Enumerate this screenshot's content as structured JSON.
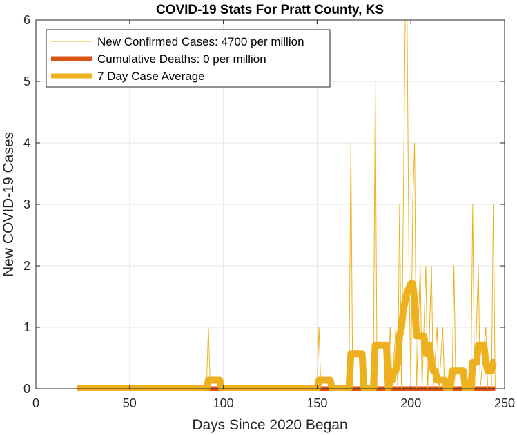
{
  "chart_data": {
    "type": "line",
    "title": "COVID-19 Stats For Pratt County, KS",
    "xlabel": "Days Since 2020 Began",
    "ylabel": "New COVID-19 Cases",
    "xlim": [
      0,
      250
    ],
    "ylim": [
      0,
      6
    ],
    "xticks": [
      0,
      50,
      100,
      150,
      200,
      250
    ],
    "yticks": [
      0,
      1,
      2,
      3,
      4,
      5,
      6
    ],
    "grid": true,
    "legend_position": "top-left",
    "colors": {
      "cases": "#EDB120",
      "deaths": "#D95319",
      "average": "#EDB120",
      "grid": "#e6e6e6",
      "axis": "#262626"
    },
    "series": [
      {
        "name": "New Confirmed Cases: 4700 per million",
        "style": "thin",
        "points": [
          [
            22,
            0
          ],
          [
            90,
            0
          ],
          [
            91,
            0
          ],
          [
            92,
            1
          ],
          [
            93,
            0
          ],
          [
            150,
            0
          ],
          [
            151,
            1
          ],
          [
            152,
            0
          ],
          [
            167,
            0
          ],
          [
            168,
            4
          ],
          [
            169,
            0
          ],
          [
            180,
            0
          ],
          [
            181,
            5
          ],
          [
            182,
            0
          ],
          [
            188,
            0
          ],
          [
            189,
            1
          ],
          [
            190,
            0
          ],
          [
            192,
            1
          ],
          [
            193,
            0
          ],
          [
            194,
            3
          ],
          [
            195,
            0
          ],
          [
            196,
            3
          ],
          [
            197,
            6
          ],
          [
            198,
            6
          ],
          [
            199,
            2
          ],
          [
            200,
            0
          ],
          [
            201,
            3
          ],
          [
            202,
            4
          ],
          [
            203,
            0
          ],
          [
            205,
            2
          ],
          [
            206,
            0
          ],
          [
            208,
            2
          ],
          [
            209,
            0
          ],
          [
            211,
            2
          ],
          [
            212,
            0
          ],
          [
            214,
            1
          ],
          [
            215,
            0
          ],
          [
            217,
            1
          ],
          [
            218,
            0
          ],
          [
            222,
            0
          ],
          [
            223,
            2
          ],
          [
            224,
            0
          ],
          [
            232,
            0
          ],
          [
            233,
            3
          ],
          [
            234,
            0
          ],
          [
            236,
            2
          ],
          [
            237,
            0
          ],
          [
            240,
            1
          ],
          [
            241,
            0
          ],
          [
            243,
            0
          ],
          [
            244,
            3
          ],
          [
            245,
            0
          ]
        ]
      },
      {
        "name": "Cumulative Deaths: 0 per million",
        "style": "thick",
        "points": [
          [
            22,
            0
          ],
          [
            245,
            0
          ]
        ]
      },
      {
        "name": "7 Day Case Average",
        "style": "thick",
        "points": [
          [
            22,
            0
          ],
          [
            91,
            0
          ],
          [
            92,
            0.14
          ],
          [
            98,
            0.14
          ],
          [
            99,
            0
          ],
          [
            150,
            0
          ],
          [
            151,
            0.14
          ],
          [
            157,
            0.14
          ],
          [
            158,
            0
          ],
          [
            167,
            0
          ],
          [
            168,
            0.57
          ],
          [
            174,
            0.57
          ],
          [
            175,
            0
          ],
          [
            180,
            0
          ],
          [
            181,
            0.71
          ],
          [
            187,
            0.71
          ],
          [
            188,
            0
          ],
          [
            189,
            0.14
          ],
          [
            190,
            0.14
          ],
          [
            191,
            0.29
          ],
          [
            192,
            0.29
          ],
          [
            193,
            0.43
          ],
          [
            194,
            0.86
          ],
          [
            195,
            1.0
          ],
          [
            196,
            1.29
          ],
          [
            197,
            1.43
          ],
          [
            198,
            1.57
          ],
          [
            200,
            1.71
          ],
          [
            201,
            1.71
          ],
          [
            202,
            1.43
          ],
          [
            203,
            0.86
          ],
          [
            207,
            0.86
          ],
          [
            208,
            0.57
          ],
          [
            209,
            0.71
          ],
          [
            210,
            0.71
          ],
          [
            211,
            0.43
          ],
          [
            212,
            0.29
          ],
          [
            213,
            0.29
          ],
          [
            214,
            0.14
          ],
          [
            218,
            0.14
          ],
          [
            219,
            0
          ],
          [
            221,
            0
          ],
          [
            222,
            0.29
          ],
          [
            228,
            0.29
          ],
          [
            229,
            0
          ],
          [
            232,
            0
          ],
          [
            233,
            0.43
          ],
          [
            235,
            0.43
          ],
          [
            236,
            0.71
          ],
          [
            239,
            0.71
          ],
          [
            240,
            0.43
          ],
          [
            241,
            0.29
          ],
          [
            243,
            0.29
          ],
          [
            244,
            0.43
          ],
          [
            245,
            0.43
          ]
        ]
      }
    ]
  }
}
